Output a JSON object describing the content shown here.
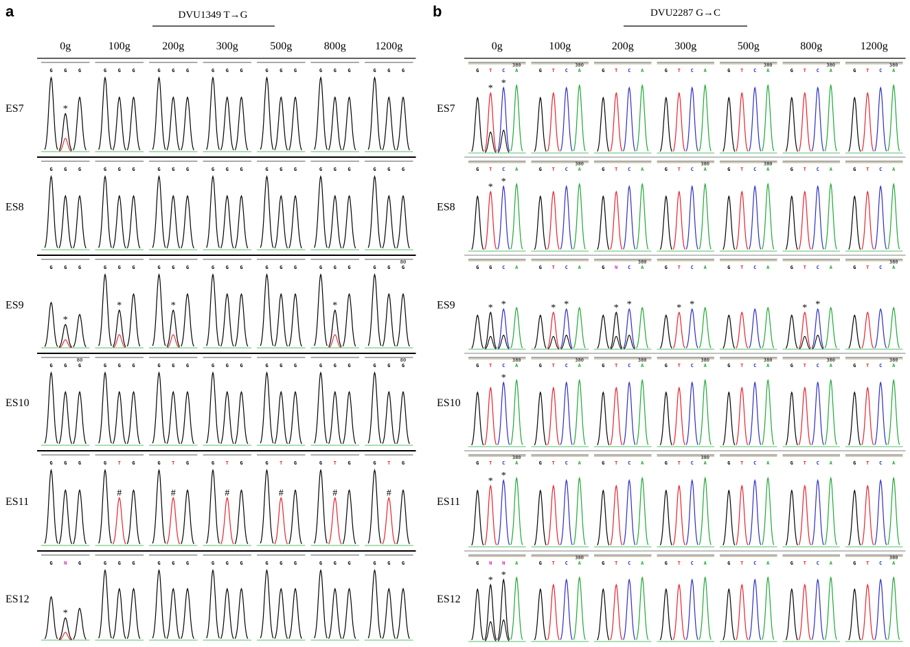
{
  "colors": {
    "G": "#000000",
    "T": "#e8202a",
    "C": "#2b2bc8",
    "A": "#1aa832",
    "N": "#e020c0"
  },
  "panel_a": {
    "letter": "a",
    "title": "DVU1349  T→G",
    "columns": [
      "0g",
      "100g",
      "200g",
      "300g",
      "500g",
      "800g",
      "1200g"
    ],
    "rows": [
      {
        "label": "ES7",
        "cells": [
          {
            "bases": [
              "G",
              "G",
              "G"
            ],
            "mark": "*",
            "markIndex": 1,
            "mixed": true
          },
          {
            "bases": [
              "G",
              "G",
              "G"
            ]
          },
          {
            "bases": [
              "G",
              "G",
              "G"
            ]
          },
          {
            "bases": [
              "G",
              "G",
              "G"
            ]
          },
          {
            "bases": [
              "G",
              "G",
              "G"
            ]
          },
          {
            "bases": [
              "G",
              "G",
              "G"
            ]
          },
          {
            "bases": [
              "G",
              "G",
              "G"
            ]
          }
        ]
      },
      {
        "label": "ES8",
        "cells": [
          {
            "bases": [
              "G",
              "G",
              "G"
            ]
          },
          {
            "bases": [
              "G",
              "G",
              "G"
            ]
          },
          {
            "bases": [
              "G",
              "G",
              "G"
            ]
          },
          {
            "bases": [
              "G",
              "G",
              "G"
            ]
          },
          {
            "bases": [
              "G",
              "G",
              "G"
            ]
          },
          {
            "bases": [
              "G",
              "G",
              "G"
            ]
          },
          {
            "bases": [
              "G",
              "G",
              "G"
            ]
          }
        ]
      },
      {
        "label": "ES9",
        "cells": [
          {
            "bases": [
              "G",
              "G",
              "G"
            ],
            "mark": "*",
            "markIndex": 1,
            "mixed": true,
            "low": true
          },
          {
            "bases": [
              "G",
              "G",
              "G"
            ],
            "mark": "*",
            "markIndex": 1,
            "mixed": true
          },
          {
            "bases": [
              "G",
              "G",
              "G"
            ],
            "mark": "*",
            "markIndex": 1,
            "mixed": true
          },
          {
            "bases": [
              "G",
              "G",
              "G"
            ]
          },
          {
            "bases": [
              "G",
              "G",
              "G"
            ]
          },
          {
            "bases": [
              "G",
              "G",
              "G"
            ],
            "mark": "*",
            "markIndex": 1,
            "mixed": true
          },
          {
            "bases": [
              "G",
              "G",
              "G"
            ],
            "pos": "80"
          }
        ]
      },
      {
        "label": "ES10",
        "cells": [
          {
            "bases": [
              "G",
              "G",
              "G"
            ],
            "pos": "80"
          },
          {
            "bases": [
              "G",
              "G",
              "G"
            ]
          },
          {
            "bases": [
              "G",
              "G",
              "G"
            ]
          },
          {
            "bases": [
              "G",
              "G",
              "G"
            ]
          },
          {
            "bases": [
              "G",
              "G",
              "G"
            ]
          },
          {
            "bases": [
              "G",
              "G",
              "G"
            ]
          },
          {
            "bases": [
              "G",
              "G",
              "G"
            ],
            "pos": "80"
          }
        ]
      },
      {
        "label": "ES11",
        "cells": [
          {
            "bases": [
              "G",
              "G",
              "G"
            ]
          },
          {
            "bases": [
              "G",
              "T",
              "G"
            ],
            "mark": "#",
            "markIndex": 1
          },
          {
            "bases": [
              "G",
              "T",
              "G"
            ],
            "mark": "#",
            "markIndex": 1
          },
          {
            "bases": [
              "G",
              "T",
              "G"
            ],
            "mark": "#",
            "markIndex": 1
          },
          {
            "bases": [
              "G",
              "T",
              "G"
            ],
            "mark": "#",
            "markIndex": 1
          },
          {
            "bases": [
              "G",
              "T",
              "G"
            ],
            "mark": "#",
            "markIndex": 1
          },
          {
            "bases": [
              "G",
              "T",
              "G"
            ],
            "mark": "#",
            "markIndex": 1
          }
        ]
      },
      {
        "label": "ES12",
        "cells": [
          {
            "bases": [
              "G",
              "N",
              "G"
            ],
            "mark": "*",
            "markIndex": 1,
            "mixed": true,
            "low": true
          },
          {
            "bases": [
              "G",
              "G",
              "G"
            ]
          },
          {
            "bases": [
              "G",
              "G",
              "G"
            ]
          },
          {
            "bases": [
              "G",
              "G",
              "G"
            ]
          },
          {
            "bases": [
              "G",
              "G",
              "G"
            ]
          },
          {
            "bases": [
              "G",
              "G",
              "G"
            ]
          },
          {
            "bases": [
              "G",
              "G",
              "G"
            ]
          }
        ]
      }
    ]
  },
  "panel_b": {
    "letter": "b",
    "title": "DVU2287 G→C",
    "columns": [
      "0g",
      "100g",
      "200g",
      "300g",
      "500g",
      "800g",
      "1200g"
    ],
    "rows": [
      {
        "label": "ES7",
        "cells": [
          {
            "bases": [
              "G",
              "T",
              "C",
              "A"
            ],
            "pos": "380",
            "stars": [
              1,
              2
            ],
            "mixed": true
          },
          {
            "bases": [
              "G",
              "T",
              "C",
              "A"
            ],
            "pos": "380"
          },
          {
            "bases": [
              "G",
              "T",
              "C",
              "A"
            ]
          },
          {
            "bases": [
              "G",
              "T",
              "C",
              "A"
            ]
          },
          {
            "bases": [
              "G",
              "T",
              "C",
              "A"
            ],
            "pos": "380"
          },
          {
            "bases": [
              "G",
              "T",
              "C",
              "A"
            ],
            "pos": "380"
          },
          {
            "bases": [
              "G",
              "T",
              "C",
              "A"
            ],
            "pos": "380"
          }
        ]
      },
      {
        "label": "ES8",
        "cells": [
          {
            "bases": [
              "G",
              "T",
              "C",
              "A"
            ],
            "stars": [
              1,
              2
            ]
          },
          {
            "bases": [
              "G",
              "T",
              "C",
              "A"
            ],
            "pos": "380"
          },
          {
            "bases": [
              "G",
              "T",
              "C",
              "A"
            ]
          },
          {
            "bases": [
              "G",
              "T",
              "C",
              "A"
            ],
            "pos": "380"
          },
          {
            "bases": [
              "G",
              "T",
              "C",
              "A"
            ],
            "pos": "380"
          },
          {
            "bases": [
              "G",
              "T",
              "C",
              "A"
            ]
          },
          {
            "bases": [
              "G",
              "T",
              "C",
              "A"
            ]
          }
        ]
      },
      {
        "label": "ES9",
        "cells": [
          {
            "bases": [
              "G",
              "G",
              "C",
              "A"
            ],
            "stars": [
              1,
              2
            ],
            "mixed": true,
            "low": true
          },
          {
            "bases": [
              "G",
              "T",
              "C",
              "A"
            ],
            "stars": [
              1,
              2
            ],
            "mixed": true,
            "low": true
          },
          {
            "bases": [
              "G",
              "N",
              "C",
              "A"
            ],
            "pos": "380",
            "stars": [
              1,
              2
            ],
            "mixed": true,
            "low": true
          },
          {
            "bases": [
              "G",
              "T",
              "C",
              "A"
            ],
            "stars": [
              1,
              2
            ],
            "low": true
          },
          {
            "bases": [
              "G",
              "T",
              "C",
              "A"
            ],
            "low": true
          },
          {
            "bases": [
              "G",
              "T",
              "C",
              "A"
            ],
            "stars": [
              1,
              2
            ],
            "mixed": true,
            "low": true
          },
          {
            "bases": [
              "G",
              "T",
              "C",
              "A"
            ],
            "pos": "380",
            "low": true
          }
        ]
      },
      {
        "label": "ES10",
        "cells": [
          {
            "bases": [
              "G",
              "T",
              "C",
              "A"
            ],
            "pos": "380",
            "stars": [
              2
            ]
          },
          {
            "bases": [
              "G",
              "T",
              "C",
              "A"
            ],
            "pos": "380"
          },
          {
            "bases": [
              "G",
              "T",
              "C",
              "A"
            ],
            "pos": "380"
          },
          {
            "bases": [
              "G",
              "T",
              "C",
              "A"
            ],
            "pos": "380"
          },
          {
            "bases": [
              "G",
              "T",
              "C",
              "A"
            ],
            "pos": "380"
          },
          {
            "bases": [
              "G",
              "T",
              "C",
              "A"
            ],
            "pos": "380"
          },
          {
            "bases": [
              "G",
              "T",
              "C",
              "A"
            ],
            "pos": "380"
          }
        ]
      },
      {
        "label": "ES11",
        "cells": [
          {
            "bases": [
              "G",
              "T",
              "C",
              "A"
            ],
            "pos": "380",
            "stars": [
              1,
              2
            ]
          },
          {
            "bases": [
              "G",
              "T",
              "C",
              "A"
            ]
          },
          {
            "bases": [
              "G",
              "T",
              "C",
              "A"
            ]
          },
          {
            "bases": [
              "G",
              "T",
              "C",
              "A"
            ],
            "pos": "380"
          },
          {
            "bases": [
              "G",
              "T",
              "C",
              "A"
            ]
          },
          {
            "bases": [
              "G",
              "T",
              "C",
              "A"
            ]
          },
          {
            "bases": [
              "G",
              "T",
              "C",
              "A"
            ]
          }
        ]
      },
      {
        "label": "ES12",
        "cells": [
          {
            "bases": [
              "G",
              "N",
              "N",
              "A"
            ],
            "stars": [
              1,
              2
            ],
            "mixed": true
          },
          {
            "bases": [
              "G",
              "T",
              "C",
              "A"
            ],
            "pos": "380"
          },
          {
            "bases": [
              "G",
              "T",
              "C",
              "A"
            ]
          },
          {
            "bases": [
              "G",
              "T",
              "C",
              "A"
            ]
          },
          {
            "bases": [
              "G",
              "T",
              "C",
              "A"
            ]
          },
          {
            "bases": [
              "G",
              "T",
              "C",
              "A"
            ]
          },
          {
            "bases": [
              "G",
              "T",
              "C",
              "A"
            ],
            "pos": "380"
          }
        ]
      }
    ]
  }
}
